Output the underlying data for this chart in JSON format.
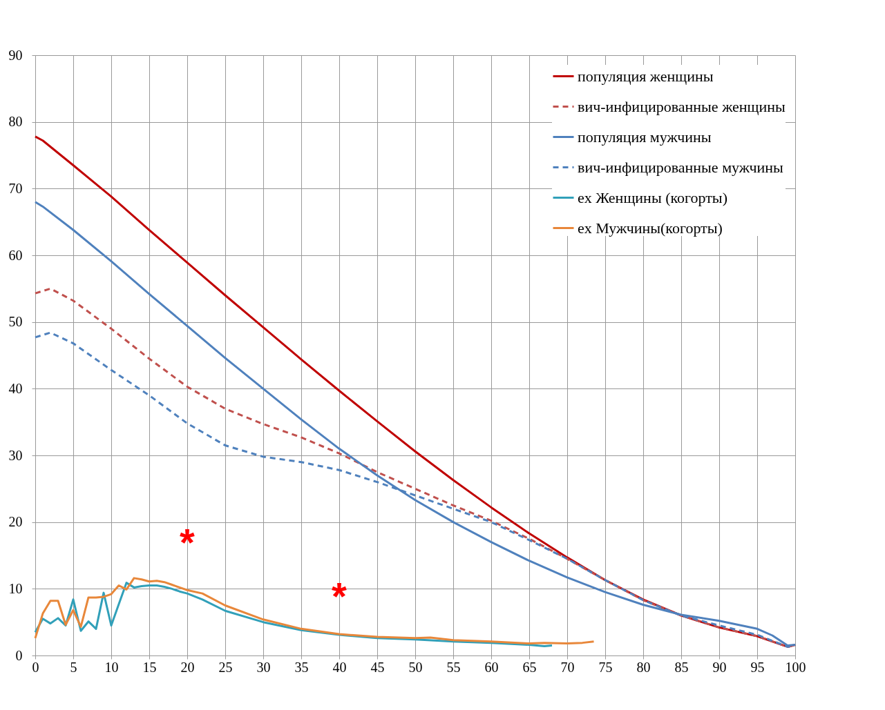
{
  "chart_data": {
    "type": "line",
    "xlim": [
      0,
      100
    ],
    "xticks": [
      0,
      5,
      10,
      15,
      20,
      25,
      30,
      35,
      40,
      45,
      50,
      55,
      60,
      65,
      70,
      75,
      80,
      85,
      90,
      95,
      100
    ],
    "ylim": [
      0,
      90
    ],
    "yticks": [
      0,
      10,
      20,
      30,
      40,
      50,
      60,
      70,
      80,
      90
    ],
    "grid": true,
    "legend": "top right",
    "marker": "none",
    "series": [
      {
        "name": "популяция женщины",
        "color": "#c00000",
        "line_style": "solid",
        "x": [
          0,
          1,
          5,
          10,
          15,
          20,
          25,
          30,
          35,
          40,
          45,
          50,
          55,
          60,
          65,
          70,
          75,
          80,
          85,
          90,
          95,
          99,
          100
        ],
        "values": [
          77.8,
          77.2,
          73.5,
          68.8,
          63.8,
          58.9,
          54,
          49.2,
          44.4,
          39.7,
          35.1,
          30.6,
          26.3,
          22.2,
          18.3,
          14.7,
          11.3,
          8.4,
          6,
          4.2,
          2.9,
          1.3,
          1.6
        ]
      },
      {
        "name": "вич-инфицированные женщины",
        "color": "#c0504d",
        "line_style": "dashed",
        "x": [
          0,
          2,
          5,
          10,
          15,
          20,
          25,
          30,
          35,
          40,
          45,
          50,
          55,
          60,
          65,
          70,
          75,
          80,
          85,
          90,
          95,
          99,
          100
        ],
        "values": [
          54.3,
          55,
          53.2,
          49,
          44.5,
          40.3,
          37,
          34.7,
          32.7,
          30.3,
          27.5,
          25,
          22.5,
          20.2,
          17.5,
          14.5,
          11.3,
          8.3,
          6,
          4.2,
          2.9,
          1.3,
          1.6
        ]
      },
      {
        "name": "популяция мужчины",
        "color": "#4f81bd",
        "line_style": "solid",
        "x": [
          0,
          1,
          5,
          10,
          15,
          20,
          25,
          30,
          35,
          40,
          45,
          50,
          55,
          60,
          65,
          70,
          75,
          80,
          85,
          90,
          95,
          97,
          99,
          100
        ],
        "values": [
          68,
          67.3,
          63.8,
          59.1,
          54.2,
          49.4,
          44.6,
          40,
          35.4,
          31,
          27,
          23.3,
          20,
          17,
          14.2,
          11.7,
          9.5,
          7.6,
          6.1,
          5.2,
          4,
          3,
          1.5,
          1.6
        ]
      },
      {
        "name": "вич-инфицированные мужчины",
        "color": "#4f81bd",
        "line_style": "dashed",
        "x": [
          0,
          2,
          5,
          10,
          15,
          20,
          25,
          30,
          35,
          40,
          45,
          50,
          55,
          60,
          65,
          70,
          75,
          80,
          85,
          90,
          95,
          99,
          100
        ],
        "values": [
          47.7,
          48.4,
          46.8,
          42.8,
          39,
          34.8,
          31.5,
          29.8,
          29,
          27.8,
          26,
          24,
          22,
          20,
          17.3,
          14.5,
          11.3,
          8.3,
          6,
          4.5,
          3.1,
          1.3,
          1.6
        ]
      },
      {
        "name": "ex Женщины (когорты)",
        "color": "#31a0b9",
        "line_style": "solid",
        "x": [
          0,
          1,
          2,
          3,
          4,
          5,
          6,
          7,
          8,
          9,
          10,
          11,
          12,
          13,
          14,
          15,
          16,
          17,
          18,
          19,
          20,
          22,
          25,
          30,
          35,
          40,
          45,
          50,
          55,
          60,
          65,
          67,
          68
        ],
        "values": [
          3.5,
          5.5,
          4.8,
          5.6,
          4.5,
          8.4,
          3.7,
          5.1,
          4,
          9.4,
          4.5,
          7.7,
          10.9,
          10.2,
          10.4,
          10.5,
          10.5,
          10.3,
          10,
          9.6,
          9.3,
          8.4,
          6.7,
          5,
          3.8,
          3.1,
          2.6,
          2.4,
          2.1,
          1.9,
          1.6,
          1.4,
          1.5
        ]
      },
      {
        "name": "ex Мужчины(когорты)",
        "color": "#e8873a",
        "line_style": "solid",
        "x": [
          0,
          1,
          2,
          3,
          4,
          5,
          6,
          7,
          8,
          9,
          10,
          11,
          12,
          13,
          14,
          15,
          16,
          17,
          18,
          19,
          20,
          22,
          25,
          30,
          35,
          40,
          45,
          50,
          52,
          55,
          60,
          65,
          67,
          70,
          72,
          73.5
        ],
        "values": [
          2.6,
          6.3,
          8.2,
          8.2,
          4.6,
          6.8,
          4.3,
          8.7,
          8.7,
          8.8,
          9.2,
          10.5,
          9.9,
          11.6,
          11.4,
          11.1,
          11.2,
          11,
          10.6,
          10.2,
          9.8,
          9.3,
          7.5,
          5.4,
          4,
          3.2,
          2.8,
          2.6,
          2.7,
          2.3,
          2.1,
          1.8,
          1.9,
          1.8,
          1.9,
          2.1
        ]
      }
    ],
    "annotations": [
      "*",
      "*"
    ]
  }
}
